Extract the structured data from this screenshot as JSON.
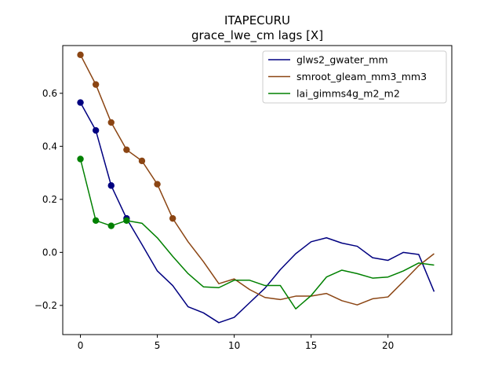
{
  "chart_data": {
    "type": "line",
    "title": "ITAPECURU",
    "subtitle": "grace_lwe_cm lags [X]",
    "xlabel": "",
    "ylabel": "",
    "xlim": [
      -1.15,
      24.15
    ],
    "ylim": [
      -0.31,
      0.78
    ],
    "xticks": [
      0,
      5,
      10,
      15,
      20
    ],
    "xtick_labels": [
      "0",
      "5",
      "10",
      "15",
      "20"
    ],
    "yticks": [
      -0.2,
      0.0,
      0.2,
      0.4,
      0.6
    ],
    "ytick_labels": [
      "−0.2",
      "0.0",
      "0.2",
      "0.4",
      "0.6"
    ],
    "legend_position": "top-right",
    "grid": false,
    "x": [
      0,
      1,
      2,
      3,
      4,
      5,
      6,
      7,
      8,
      9,
      10,
      11,
      12,
      13,
      14,
      15,
      16,
      17,
      18,
      19,
      20,
      21,
      22,
      23
    ],
    "series": [
      {
        "name": "glws2_gwater_mm",
        "color": "#000080",
        "values": [
          0.565,
          0.46,
          0.252,
          0.128,
          0.03,
          -0.07,
          -0.125,
          -0.205,
          -0.228,
          -0.265,
          -0.245,
          -0.19,
          -0.135,
          -0.065,
          -0.005,
          0.04,
          0.055,
          0.035,
          0.023,
          -0.02,
          -0.03,
          0.0,
          -0.008,
          -0.148
        ],
        "marker_count": 4
      },
      {
        "name": "smroot_gleam_mm3_mm3",
        "color": "#8B4513",
        "values": [
          0.745,
          0.633,
          0.49,
          0.387,
          0.345,
          0.257,
          0.128,
          0.04,
          -0.035,
          -0.118,
          -0.1,
          -0.14,
          -0.17,
          -0.178,
          -0.165,
          -0.165,
          -0.155,
          -0.182,
          -0.198,
          -0.175,
          -0.168,
          -0.11,
          -0.05,
          -0.005
        ],
        "marker_count": 7
      },
      {
        "name": "lai_gimms4g_m2_m2",
        "color": "#008000",
        "values": [
          0.352,
          0.12,
          0.1,
          0.12,
          0.11,
          0.055,
          -0.015,
          -0.08,
          -0.13,
          -0.133,
          -0.105,
          -0.105,
          -0.125,
          -0.125,
          -0.213,
          -0.163,
          -0.093,
          -0.067,
          -0.08,
          -0.097,
          -0.093,
          -0.07,
          -0.04,
          -0.048
        ],
        "marker_count": 4
      }
    ]
  }
}
